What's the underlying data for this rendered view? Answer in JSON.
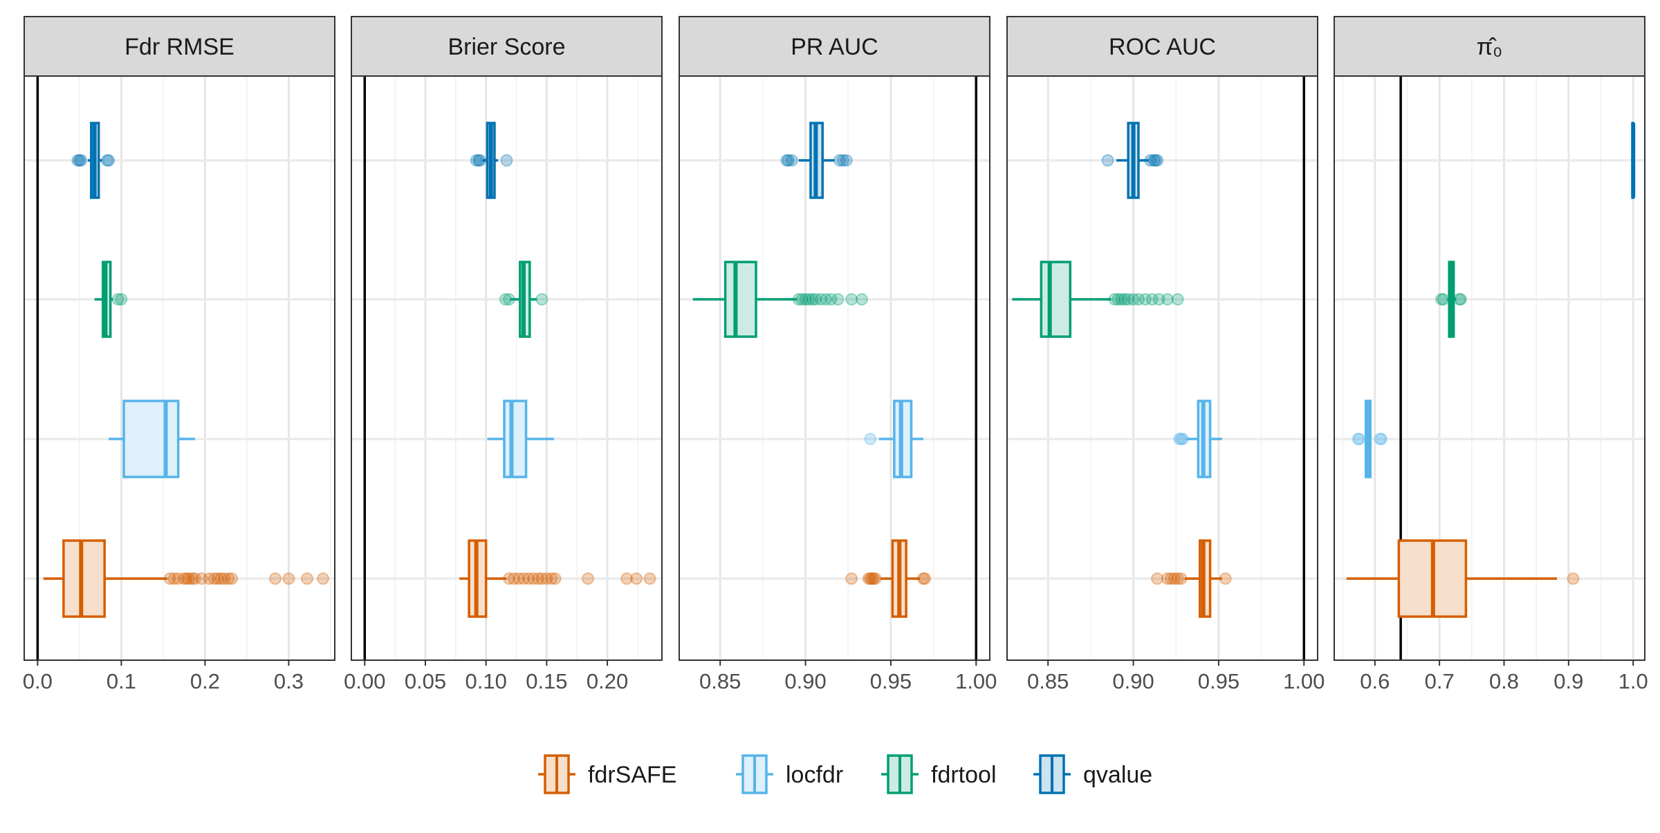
{
  "chart_data": {
    "type": "boxplot",
    "layout": "faceted horizontal boxplots, one facet per metric",
    "methods": [
      "fdrSAFE",
      "locfdr",
      "fdrtool",
      "qvalue"
    ],
    "method_colors": {
      "fdrSAFE": "#D55E00",
      "locfdr": "#56B4E9",
      "fdrtool": "#009E73",
      "qvalue": "#0072B2"
    },
    "legend": {
      "position": "bottom",
      "items": [
        "fdrSAFE",
        "locfdr",
        "fdrtool",
        "qvalue"
      ]
    },
    "grid": true,
    "facets": [
      {
        "title": "Fdr RMSE",
        "xlim": [
          -0.016,
          0.355
        ],
        "ticks": [
          0.0,
          0.1,
          0.2,
          0.3
        ],
        "tick_labels": [
          "0.0",
          "0.1",
          "0.2",
          "0.3"
        ],
        "reference_line": 0.0,
        "boxes": {
          "qvalue": {
            "whisker_low": 0.06,
            "q1": 0.064,
            "median": 0.068,
            "q3": 0.073,
            "whisker_high": 0.077,
            "outliers": [
              0.048,
              0.05,
              0.052,
              0.083,
              0.085
            ]
          },
          "fdrtool": {
            "whisker_low": 0.068,
            "q1": 0.078,
            "median": 0.081,
            "q3": 0.087,
            "whisker_high": 0.09,
            "outliers": [
              0.096,
              0.1
            ]
          },
          "locfdr": {
            "whisker_low": 0.085,
            "q1": 0.103,
            "median": 0.153,
            "q3": 0.168,
            "whisker_high": 0.188,
            "outliers": []
          },
          "fdrSAFE": {
            "whisker_low": 0.007,
            "q1": 0.031,
            "median": 0.052,
            "q3": 0.08,
            "whisker_high": 0.155,
            "outliers": [
              0.158,
              0.163,
              0.168,
              0.175,
              0.178,
              0.181,
              0.185,
              0.188,
              0.196,
              0.205,
              0.211,
              0.215,
              0.219,
              0.223,
              0.228,
              0.232,
              0.284,
              0.3,
              0.322,
              0.341
            ]
          }
        }
      },
      {
        "title": "Brier Score",
        "xlim": [
          -0.011,
          0.245
        ],
        "ticks": [
          0.0,
          0.05,
          0.1,
          0.15,
          0.2
        ],
        "tick_labels": [
          "0.00",
          "0.05",
          "0.10",
          "0.15",
          "0.20"
        ],
        "reference_line": 0.0,
        "boxes": {
          "qvalue": {
            "whisker_low": 0.097,
            "q1": 0.101,
            "median": 0.104,
            "q3": 0.107,
            "whisker_high": 0.11,
            "outliers": [
              0.092,
              0.094,
              0.095,
              0.117
            ]
          },
          "fdrtool": {
            "whisker_low": 0.12,
            "q1": 0.128,
            "median": 0.131,
            "q3": 0.136,
            "whisker_high": 0.142,
            "outliers": [
              0.116,
              0.119,
              0.146
            ]
          },
          "locfdr": {
            "whisker_low": 0.101,
            "q1": 0.115,
            "median": 0.121,
            "q3": 0.133,
            "whisker_high": 0.156,
            "outliers": []
          },
          "fdrSAFE": {
            "whisker_low": 0.078,
            "q1": 0.086,
            "median": 0.092,
            "q3": 0.1,
            "whisker_high": 0.117,
            "outliers": [
              0.119,
              0.123,
              0.127,
              0.131,
              0.135,
              0.139,
              0.143,
              0.146,
              0.15,
              0.154,
              0.157,
              0.184,
              0.216,
              0.224,
              0.235
            ]
          }
        }
      },
      {
        "title": "PR AUC",
        "xlim": [
          0.826,
          1.008
        ],
        "ticks": [
          0.85,
          0.9,
          0.95,
          1.0
        ],
        "tick_labels": [
          "0.85",
          "0.90",
          "0.95",
          "1.00"
        ],
        "reference_line": 1.0,
        "boxes": {
          "qvalue": {
            "whisker_low": 0.896,
            "q1": 0.903,
            "median": 0.906,
            "q3": 0.91,
            "whisker_high": 0.917,
            "outliers": [
              0.889,
              0.89,
              0.892,
              0.92,
              0.922,
              0.924
            ]
          },
          "fdrtool": {
            "whisker_low": 0.834,
            "q1": 0.853,
            "median": 0.859,
            "q3": 0.871,
            "whisker_high": 0.895,
            "outliers": [
              0.896,
              0.898,
              0.9,
              0.902,
              0.904,
              0.906,
              0.909,
              0.912,
              0.915,
              0.919,
              0.927,
              0.933
            ]
          },
          "locfdr": {
            "whisker_low": 0.943,
            "q1": 0.952,
            "median": 0.956,
            "q3": 0.962,
            "whisker_high": 0.969,
            "outliers": [
              0.938
            ]
          },
          "fdrSAFE": {
            "whisker_low": 0.944,
            "q1": 0.951,
            "median": 0.955,
            "q3": 0.959,
            "whisker_high": 0.967,
            "outliers": [
              0.927,
              0.937,
              0.938,
              0.939,
              0.94,
              0.941,
              0.969,
              0.97
            ]
          }
        }
      },
      {
        "title": "ROC AUC",
        "xlim": [
          0.826,
          1.008
        ],
        "ticks": [
          0.85,
          0.9,
          0.95,
          1.0
        ],
        "tick_labels": [
          "0.85",
          "0.90",
          "0.95",
          "1.00"
        ],
        "reference_line": 1.0,
        "boxes": {
          "qvalue": {
            "whisker_low": 0.89,
            "q1": 0.897,
            "median": 0.9,
            "q3": 0.903,
            "whisker_high": 0.909,
            "outliers": [
              0.885,
              0.91,
              0.912,
              0.913,
              0.914
            ]
          },
          "fdrtool": {
            "whisker_low": 0.829,
            "q1": 0.846,
            "median": 0.851,
            "q3": 0.863,
            "whisker_high": 0.887,
            "outliers": [
              0.889,
              0.891,
              0.893,
              0.895,
              0.897,
              0.9,
              0.903,
              0.907,
              0.911,
              0.915,
              0.92,
              0.926
            ]
          },
          "locfdr": {
            "whisker_low": 0.931,
            "q1": 0.938,
            "median": 0.941,
            "q3": 0.945,
            "whisker_high": 0.952,
            "outliers": [
              0.927,
              0.928,
              0.929
            ]
          },
          "fdrSAFE": {
            "whisker_low": 0.93,
            "q1": 0.939,
            "median": 0.941,
            "q3": 0.945,
            "whisker_high": 0.952,
            "outliers": [
              0.914,
              0.92,
              0.922,
              0.924,
              0.926,
              0.928,
              0.954
            ]
          }
        }
      },
      {
        "title": "π̂₀",
        "xlim": [
          0.537,
          1.018
        ],
        "ticks": [
          0.6,
          0.7,
          0.8,
          0.9,
          1.0
        ],
        "tick_labels": [
          "0.6",
          "0.7",
          "0.8",
          "0.9",
          "1.0"
        ],
        "reference_line": 0.64,
        "boxes": {
          "qvalue": {
            "whisker_low": 0.999,
            "q1": 0.999,
            "median": 1.0,
            "q3": 1.0,
            "whisker_high": 1.0,
            "outliers": []
          },
          "fdrtool": {
            "whisker_low": 0.712,
            "q1": 0.715,
            "median": 0.718,
            "q3": 0.722,
            "whisker_high": 0.726,
            "outliers": [
              0.703,
              0.706,
              0.731,
              0.733
            ]
          },
          "locfdr": {
            "whisker_low": 0.585,
            "q1": 0.586,
            "median": 0.589,
            "q3": 0.593,
            "whisker_high": 0.594,
            "outliers": [
              0.574,
              0.576,
              0.608,
              0.61
            ]
          },
          "fdrSAFE": {
            "whisker_low": 0.556,
            "q1": 0.637,
            "median": 0.69,
            "q3": 0.741,
            "whisker_high": 0.882,
            "outliers": [
              0.907
            ]
          }
        }
      }
    ]
  }
}
